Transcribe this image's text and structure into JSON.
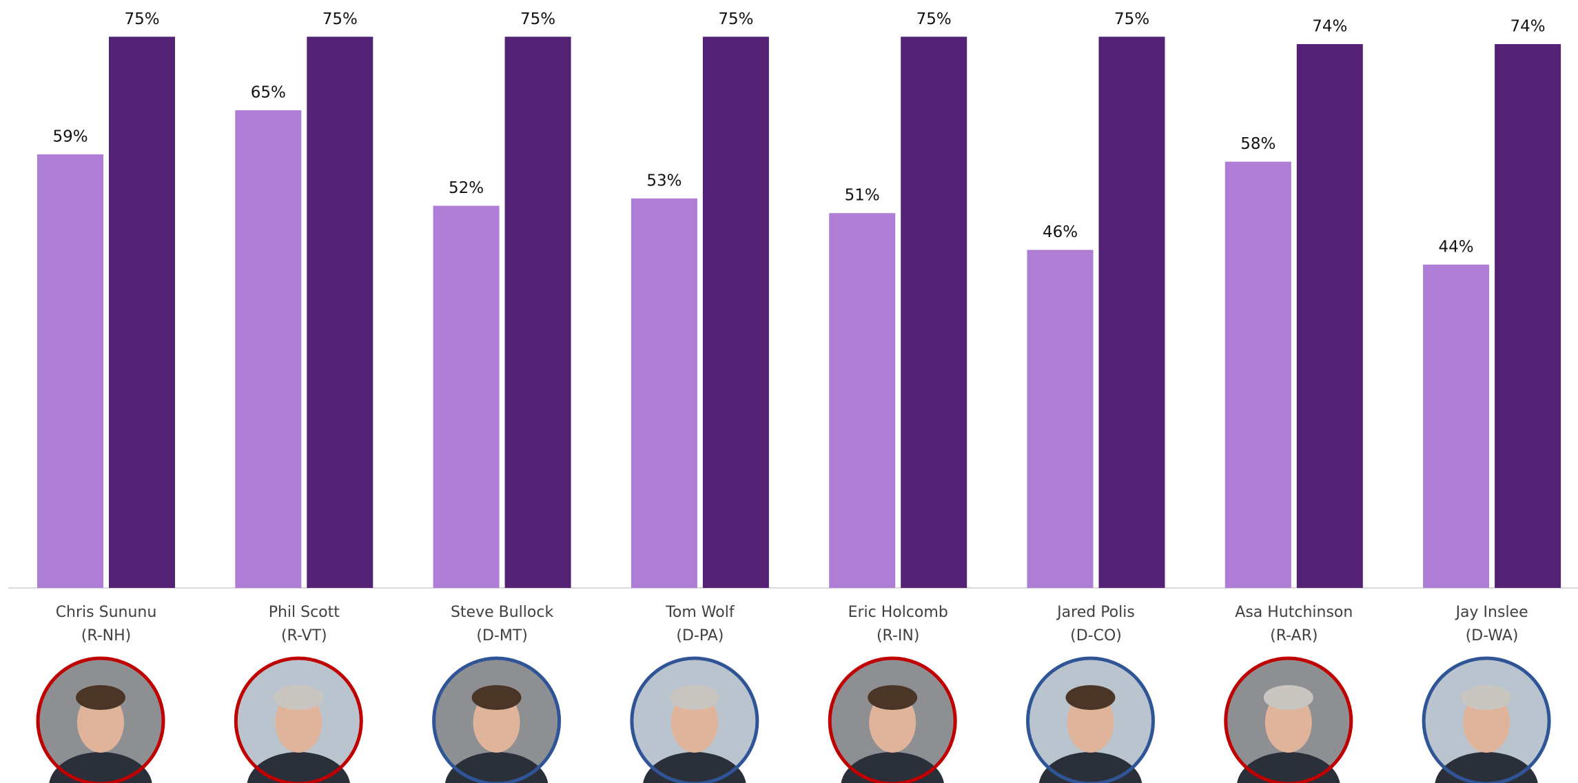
{
  "chart_data": {
    "type": "bar",
    "categories": [
      [
        "Chris Sununu",
        "(R-NH)"
      ],
      [
        "Phil Scott",
        "(R-VT)"
      ],
      [
        "Steve Bullock",
        "(D-MT)"
      ],
      [
        "Tom Wolf",
        "(D-PA)"
      ],
      [
        "Eric Holcomb",
        "(R-IN)"
      ],
      [
        "Jared Polis",
        "(D-CO)"
      ],
      [
        "Asa Hutchinson",
        "(R-AR)"
      ],
      [
        "Jay Inslee",
        "(D-WA)"
      ]
    ],
    "series": [
      {
        "color": "#ae7dd6",
        "values": [
          59,
          65,
          52,
          53,
          51,
          46,
          58,
          44
        ],
        "value_labels": [
          "59%",
          "65%",
          "52%",
          "53%",
          "51%",
          "46%",
          "58%",
          "44%"
        ]
      },
      {
        "color": "#532275",
        "values": [
          75,
          75,
          75,
          75,
          75,
          75,
          74,
          74
        ],
        "value_labels": [
          "75%",
          "75%",
          "75%",
          "75%",
          "75%",
          "75%",
          "74%",
          "74%"
        ]
      }
    ],
    "ylim": [
      0,
      80
    ]
  }
}
